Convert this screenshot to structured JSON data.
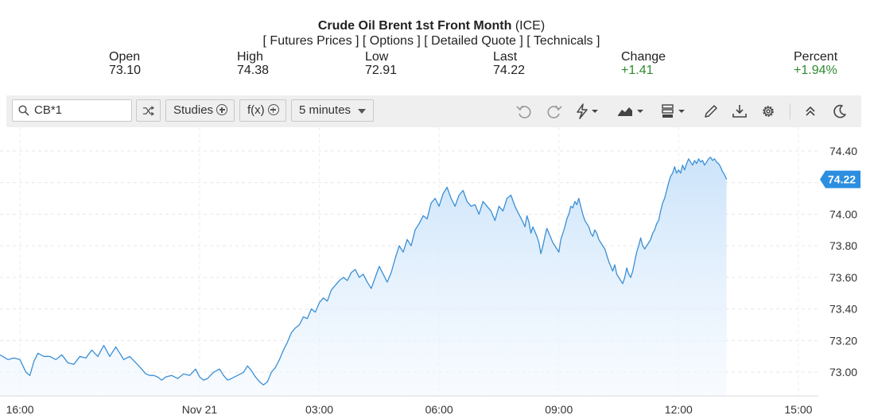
{
  "header": {
    "title": "Crude Oil Brent 1st Front Month",
    "exchange": "(ICE)",
    "links": [
      "[ Futures Prices ]",
      "[ Options ]",
      "[ Detailed Quote ]",
      "[ Technicals ]"
    ]
  },
  "stats": {
    "open": {
      "label": "Open",
      "value": "73.10"
    },
    "high": {
      "label": "High",
      "value": "74.38"
    },
    "low": {
      "label": "Low",
      "value": "72.91"
    },
    "last": {
      "label": "Last",
      "value": "74.22"
    },
    "change": {
      "label": "Change",
      "value": "+1.41"
    },
    "percent": {
      "label": "Percent",
      "value": "+1.94%"
    }
  },
  "toolbar": {
    "symbol": "CB*1",
    "studies_label": "Studies",
    "fx_label": "f(x)",
    "interval_label": "5 minutes",
    "icons": [
      "shuffle-icon",
      "undo-icon",
      "redo-icon",
      "lightning-icon",
      "chart-type-icon",
      "template-icon",
      "pencil-icon",
      "download-icon",
      "gear-icon",
      "collapse-icon",
      "dark-mode-icon"
    ]
  },
  "colors": {
    "line": "#3a8fd6",
    "fill_top": "#c9e2fa",
    "fill_bottom": "#f3f9ff",
    "last_badge": "#2c8ee0",
    "positive": "#2f8a2f"
  },
  "chart_data": {
    "type": "area",
    "symbol": "CB*1",
    "interval": "5 minutes",
    "y_ticks": [
      "73.00",
      "73.20",
      "73.40",
      "73.60",
      "73.80",
      "74.00",
      "74.20",
      "74.40"
    ],
    "ylim": [
      72.85,
      74.55
    ],
    "x_tick_labels": [
      "16:00",
      "Nov 21",
      "03:00",
      "06:00",
      "09:00",
      "12:00",
      "15:00"
    ],
    "x_tick_positions": [
      0.5,
      5,
      8,
      11,
      14,
      17,
      20
    ],
    "xlim": [
      0,
      20.5
    ],
    "last_value": "74.22",
    "points": [
      [
        0.0,
        73.11
      ],
      [
        0.2,
        73.08
      ],
      [
        0.35,
        73.09
      ],
      [
        0.5,
        73.08
      ],
      [
        0.65,
        73.0
      ],
      [
        0.75,
        72.98
      ],
      [
        0.85,
        73.07
      ],
      [
        0.95,
        73.12
      ],
      [
        1.1,
        73.1
      ],
      [
        1.25,
        73.1
      ],
      [
        1.4,
        73.08
      ],
      [
        1.55,
        73.11
      ],
      [
        1.7,
        73.06
      ],
      [
        1.85,
        73.05
      ],
      [
        2.0,
        73.1
      ],
      [
        2.15,
        73.09
      ],
      [
        2.3,
        73.14
      ],
      [
        2.45,
        73.1
      ],
      [
        2.6,
        73.17
      ],
      [
        2.75,
        73.1
      ],
      [
        2.9,
        73.16
      ],
      [
        3.0,
        73.12
      ],
      [
        3.1,
        73.08
      ],
      [
        3.25,
        73.1
      ],
      [
        3.4,
        73.06
      ],
      [
        3.55,
        73.02
      ],
      [
        3.65,
        72.99
      ],
      [
        3.75,
        72.98
      ],
      [
        3.85,
        72.98
      ],
      [
        3.95,
        72.97
      ],
      [
        4.05,
        72.95
      ],
      [
        4.15,
        72.97
      ],
      [
        4.3,
        72.98
      ],
      [
        4.45,
        72.96
      ],
      [
        4.6,
        72.99
      ],
      [
        4.75,
        72.98
      ],
      [
        4.9,
        73.02
      ],
      [
        5.0,
        72.97
      ],
      [
        5.1,
        72.95
      ],
      [
        5.2,
        72.96
      ],
      [
        5.35,
        73.0
      ],
      [
        5.5,
        73.02
      ],
      [
        5.6,
        72.98
      ],
      [
        5.7,
        72.95
      ],
      [
        5.8,
        72.96
      ],
      [
        5.95,
        72.98
      ],
      [
        6.1,
        73.0
      ],
      [
        6.2,
        73.04
      ],
      [
        6.3,
        73.01
      ],
      [
        6.4,
        72.97
      ],
      [
        6.5,
        72.94
      ],
      [
        6.6,
        72.92
      ],
      [
        6.7,
        72.94
      ],
      [
        6.8,
        73.0
      ],
      [
        6.9,
        73.03
      ],
      [
        7.0,
        73.08
      ],
      [
        7.1,
        73.14
      ],
      [
        7.2,
        73.19
      ],
      [
        7.3,
        73.25
      ],
      [
        7.4,
        73.28
      ],
      [
        7.5,
        73.3
      ],
      [
        7.6,
        73.35
      ],
      [
        7.7,
        73.34
      ],
      [
        7.8,
        73.4
      ],
      [
        7.9,
        73.38
      ],
      [
        8.0,
        73.44
      ],
      [
        8.1,
        73.47
      ],
      [
        8.2,
        73.45
      ],
      [
        8.3,
        73.52
      ],
      [
        8.4,
        73.55
      ],
      [
        8.5,
        73.58
      ],
      [
        8.6,
        73.6
      ],
      [
        8.7,
        73.58
      ],
      [
        8.8,
        73.63
      ],
      [
        8.9,
        73.65
      ],
      [
        9.0,
        73.6
      ],
      [
        9.1,
        73.62
      ],
      [
        9.2,
        73.57
      ],
      [
        9.3,
        73.53
      ],
      [
        9.4,
        73.6
      ],
      [
        9.5,
        73.67
      ],
      [
        9.6,
        73.62
      ],
      [
        9.7,
        73.57
      ],
      [
        9.8,
        73.63
      ],
      [
        9.9,
        73.72
      ],
      [
        10.0,
        73.8
      ],
      [
        10.1,
        73.76
      ],
      [
        10.2,
        73.84
      ],
      [
        10.3,
        73.8
      ],
      [
        10.4,
        73.9
      ],
      [
        10.5,
        73.94
      ],
      [
        10.6,
        73.99
      ],
      [
        10.7,
        73.97
      ],
      [
        10.8,
        74.07
      ],
      [
        10.9,
        74.1
      ],
      [
        11.0,
        74.05
      ],
      [
        11.1,
        74.13
      ],
      [
        11.2,
        74.17
      ],
      [
        11.3,
        74.1
      ],
      [
        11.4,
        74.05
      ],
      [
        11.5,
        74.12
      ],
      [
        11.6,
        74.15
      ],
      [
        11.7,
        74.08
      ],
      [
        11.8,
        74.05
      ],
      [
        11.9,
        74.06
      ],
      [
        12.0,
        74.0
      ],
      [
        12.1,
        74.08
      ],
      [
        12.2,
        74.05
      ],
      [
        12.3,
        74.02
      ],
      [
        12.4,
        73.96
      ],
      [
        12.5,
        74.05
      ],
      [
        12.6,
        74.02
      ],
      [
        12.7,
        74.1
      ],
      [
        12.8,
        74.12
      ],
      [
        12.9,
        74.05
      ],
      [
        13.0,
        74.0
      ],
      [
        13.1,
        73.95
      ],
      [
        13.15,
        73.92
      ],
      [
        13.2,
        73.99
      ],
      [
        13.25,
        73.95
      ],
      [
        13.3,
        73.88
      ],
      [
        13.35,
        73.92
      ],
      [
        13.4,
        73.89
      ],
      [
        13.45,
        73.86
      ],
      [
        13.5,
        73.82
      ],
      [
        13.55,
        73.75
      ],
      [
        13.6,
        73.8
      ],
      [
        13.65,
        73.86
      ],
      [
        13.7,
        73.91
      ],
      [
        13.75,
        73.88
      ],
      [
        13.8,
        73.85
      ],
      [
        13.85,
        73.82
      ],
      [
        13.9,
        73.8
      ],
      [
        13.95,
        73.78
      ],
      [
        14.0,
        73.76
      ],
      [
        14.05,
        73.84
      ],
      [
        14.1,
        73.88
      ],
      [
        14.15,
        73.92
      ],
      [
        14.2,
        73.97
      ],
      [
        14.25,
        74.0
      ],
      [
        14.3,
        74.05
      ],
      [
        14.35,
        74.04
      ],
      [
        14.4,
        74.08
      ],
      [
        14.45,
        74.06
      ],
      [
        14.5,
        74.1
      ],
      [
        14.55,
        74.05
      ],
      [
        14.6,
        74.0
      ],
      [
        14.65,
        73.96
      ],
      [
        14.7,
        73.94
      ],
      [
        14.75,
        73.92
      ],
      [
        14.8,
        73.88
      ],
      [
        14.85,
        73.86
      ],
      [
        14.9,
        73.9
      ],
      [
        14.95,
        73.88
      ],
      [
        15.0,
        73.84
      ],
      [
        15.05,
        73.82
      ],
      [
        15.1,
        73.8
      ],
      [
        15.15,
        73.78
      ],
      [
        15.2,
        73.74
      ],
      [
        15.25,
        73.7
      ],
      [
        15.3,
        73.67
      ],
      [
        15.35,
        73.64
      ],
      [
        15.4,
        73.68
      ],
      [
        15.45,
        73.62
      ],
      [
        15.5,
        73.6
      ],
      [
        15.55,
        73.58
      ],
      [
        15.6,
        73.56
      ],
      [
        15.65,
        73.6
      ],
      [
        15.7,
        73.66
      ],
      [
        15.75,
        73.62
      ],
      [
        15.8,
        73.6
      ],
      [
        15.85,
        73.64
      ],
      [
        15.9,
        73.7
      ],
      [
        15.95,
        73.76
      ],
      [
        16.0,
        73.8
      ],
      [
        16.05,
        73.85
      ],
      [
        16.1,
        73.8
      ],
      [
        16.15,
        73.78
      ],
      [
        16.2,
        73.8
      ],
      [
        16.25,
        73.82
      ],
      [
        16.3,
        73.84
      ],
      [
        16.35,
        73.88
      ],
      [
        16.4,
        73.9
      ],
      [
        16.45,
        73.94
      ],
      [
        16.5,
        73.96
      ],
      [
        16.55,
        74.02
      ],
      [
        16.6,
        74.07
      ],
      [
        16.65,
        74.1
      ],
      [
        16.7,
        74.15
      ],
      [
        16.75,
        74.2
      ],
      [
        16.8,
        74.24
      ],
      [
        16.85,
        74.26
      ],
      [
        16.9,
        74.3
      ],
      [
        16.95,
        74.26
      ],
      [
        17.0,
        74.28
      ],
      [
        17.05,
        74.26
      ],
      [
        17.1,
        74.31
      ],
      [
        17.15,
        74.28
      ],
      [
        17.2,
        74.32
      ],
      [
        17.25,
        74.35
      ],
      [
        17.3,
        74.33
      ],
      [
        17.35,
        74.31
      ],
      [
        17.4,
        74.34
      ],
      [
        17.45,
        74.32
      ],
      [
        17.5,
        74.35
      ],
      [
        17.55,
        74.33
      ],
      [
        17.6,
        74.34
      ],
      [
        17.65,
        74.31
      ],
      [
        17.7,
        74.33
      ],
      [
        17.75,
        74.35
      ],
      [
        17.8,
        74.36
      ],
      [
        17.85,
        74.34
      ],
      [
        17.9,
        74.35
      ],
      [
        17.95,
        74.33
      ],
      [
        18.0,
        74.32
      ],
      [
        18.05,
        74.3
      ],
      [
        18.1,
        74.27
      ],
      [
        18.15,
        74.25
      ],
      [
        18.2,
        74.22
      ]
    ]
  }
}
